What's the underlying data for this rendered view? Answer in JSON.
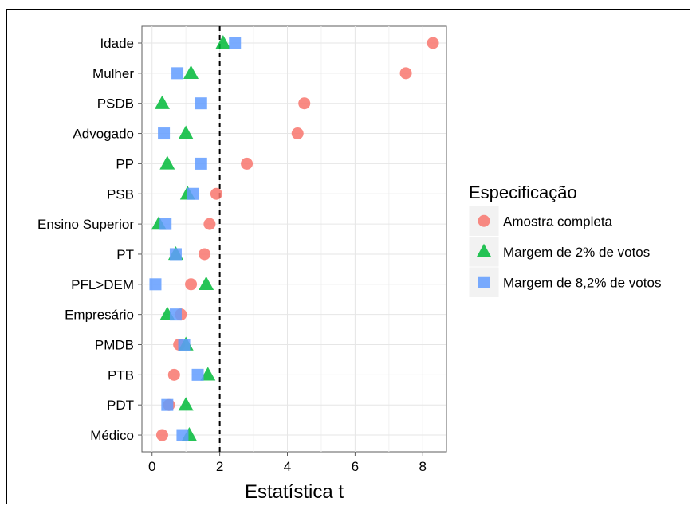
{
  "chart_data": {
    "type": "scatter",
    "xlabel": "Estatística t",
    "ylabel": "",
    "xlim": [
      -0.3,
      8.7
    ],
    "xticks": [
      0,
      2,
      4,
      6,
      8
    ],
    "reference_line": 2,
    "grid": true,
    "legend_position": "right",
    "categories": [
      "Idade",
      "Mulher",
      "PSDB",
      "Advogado",
      "PP",
      "PSB",
      "Ensino Superior",
      "PT",
      "PFL>DEM",
      "Empresário",
      "PMDB",
      "PTB",
      "PDT",
      "Médico"
    ],
    "legend": {
      "title": "Especificação"
    },
    "series": [
      {
        "name": "Amostra completa",
        "marker": "circle",
        "color": "#F8766D",
        "values": [
          8.3,
          7.5,
          4.5,
          4.3,
          2.8,
          1.9,
          1.7,
          1.55,
          1.15,
          0.85,
          0.8,
          0.65,
          0.5,
          0.3
        ]
      },
      {
        "name": "Margem de 2% de votos",
        "marker": "triangle",
        "color": "#00BA38",
        "values": [
          2.1,
          1.15,
          0.3,
          1.0,
          0.45,
          1.05,
          0.2,
          0.7,
          1.6,
          0.45,
          1.0,
          1.65,
          1.0,
          1.1
        ]
      },
      {
        "name": "Margem de 8,2% de votos",
        "marker": "square",
        "color": "#619CFF",
        "values": [
          2.45,
          0.75,
          1.45,
          0.35,
          1.45,
          1.2,
          0.4,
          0.7,
          0.1,
          0.7,
          0.95,
          1.35,
          0.45,
          0.9
        ]
      }
    ]
  }
}
